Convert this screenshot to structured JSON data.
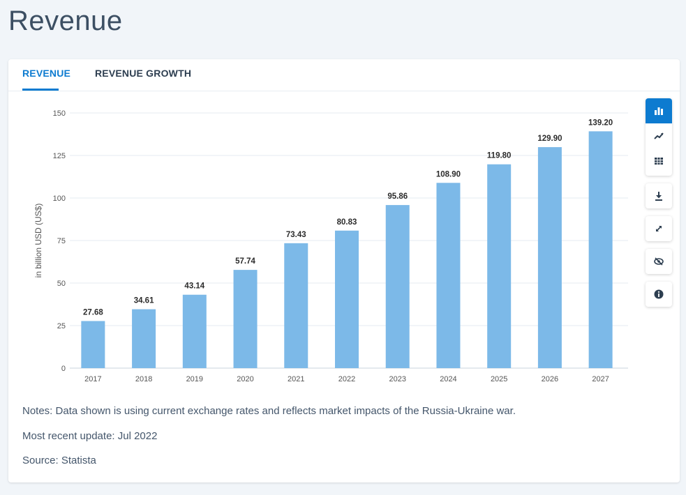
{
  "page": {
    "title": "Revenue"
  },
  "tabs": [
    {
      "label": "REVENUE",
      "active": true
    },
    {
      "label": "REVENUE GROWTH",
      "active": false
    }
  ],
  "toolbar": {
    "icons": [
      "bar-chart-icon",
      "line-chart-icon",
      "table-icon",
      "download-icon",
      "expand-icon",
      "hide-icon",
      "info-icon"
    ],
    "accent": "#0d7bd0"
  },
  "chart_data": {
    "type": "bar",
    "categories": [
      "2017",
      "2018",
      "2019",
      "2020",
      "2021",
      "2022",
      "2023",
      "2024",
      "2025",
      "2026",
      "2027"
    ],
    "values": [
      27.68,
      34.61,
      43.14,
      57.74,
      73.43,
      80.83,
      95.86,
      108.9,
      119.8,
      129.9,
      139.2
    ],
    "value_labels": [
      "27.68",
      "34.61",
      "43.14",
      "57.74",
      "73.43",
      "80.83",
      "95.86",
      "108.90",
      "119.80",
      "129.90",
      "139.20"
    ],
    "ylabel": "in billion USD (US$)",
    "xlabel": "",
    "ylim": [
      0,
      150
    ],
    "yticks": [
      0,
      25,
      50,
      75,
      100,
      125,
      150
    ],
    "grid": true,
    "bar_color": "#7cb9e8"
  },
  "notes": {
    "note": "Notes: Data shown is using current exchange rates and reflects market impacts of the Russia-Ukraine war.",
    "update": "Most recent update: Jul 2022",
    "source": "Source: Statista"
  }
}
